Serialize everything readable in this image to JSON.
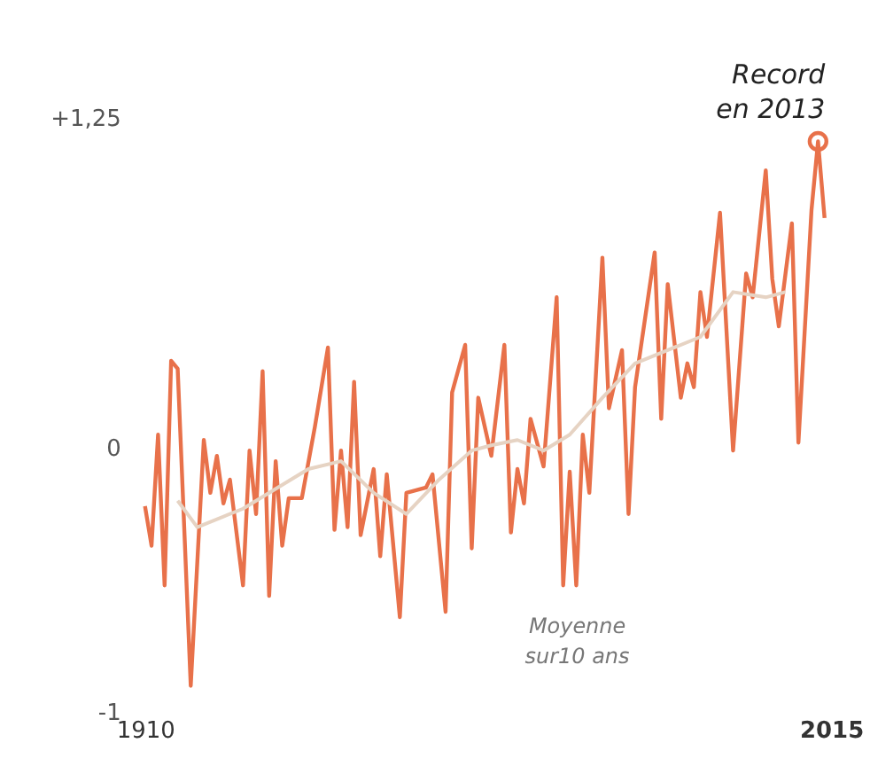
{
  "chart_data": {
    "type": "line",
    "xlim": [
      1910,
      2015
    ],
    "xticks": [
      1910,
      2015
    ],
    "ylim": [
      -1,
      1.25
    ],
    "yticks": [
      {
        "value": 1.25,
        "label": "+1,25"
      },
      0,
      -1
    ],
    "grid": false,
    "marker": "none",
    "line_style": "solid",
    "series": [
      {
        "color": "#e8714a",
        "x": [
          1910,
          1911,
          1912,
          1913,
          1914,
          1915,
          1917,
          1919,
          1920,
          1921,
          1922,
          1923,
          1925,
          1926,
          1927,
          1928,
          1929,
          1930,
          1931,
          1932,
          1934,
          1936,
          1938,
          1939,
          1940,
          1941,
          1942,
          1943,
          1945,
          1946,
          1947,
          1949,
          1950,
          1953,
          1954,
          1956,
          1957,
          1959,
          1960,
          1961,
          1963,
          1965,
          1966,
          1967,
          1968,
          1969,
          1971,
          1973,
          1974,
          1975,
          1976,
          1977,
          1978,
          1980,
          1981,
          1983,
          1984,
          1985,
          1988,
          1989,
          1990,
          1992,
          1993,
          1994,
          1995,
          1996,
          1998,
          2000,
          2002,
          2003,
          2005,
          2006,
          2007,
          2009,
          2010,
          2012,
          2013,
          2014
        ],
        "values": [
          -0.22,
          -0.37,
          0.05,
          -0.52,
          0.33,
          0.3,
          -0.9,
          0.03,
          -0.17,
          -0.03,
          -0.21,
          -0.12,
          -0.52,
          -0.01,
          -0.25,
          0.29,
          -0.56,
          -0.05,
          -0.37,
          -0.19,
          -0.19,
          0.08,
          0.38,
          -0.31,
          -0.01,
          -0.3,
          0.25,
          -0.33,
          -0.08,
          -0.41,
          -0.1,
          -0.64,
          -0.17,
          -0.15,
          -0.1,
          -0.62,
          0.21,
          0.39,
          -0.38,
          0.19,
          -0.03,
          0.39,
          -0.32,
          -0.08,
          -0.21,
          0.11,
          -0.07,
          0.57,
          -0.52,
          -0.09,
          -0.52,
          0.05,
          -0.17,
          0.72,
          0.15,
          0.37,
          -0.25,
          0.23,
          0.74,
          0.11,
          0.62,
          0.19,
          0.32,
          0.23,
          0.59,
          0.42,
          0.89,
          -0.01,
          0.66,
          0.57,
          1.05,
          0.64,
          0.46,
          0.85,
          0.02,
          0.9,
          1.16,
          0.87
        ]
      },
      {
        "color": "#e6d3c3",
        "x": [
          1915,
          1918,
          1925,
          1935,
          1940,
          1945,
          1950,
          1955,
          1960,
          1963,
          1967,
          1971,
          1975,
          1980,
          1985,
          1990,
          1995,
          2000,
          2005,
          2008
        ],
        "values": [
          -0.2,
          -0.3,
          -0.23,
          -0.08,
          -0.05,
          -0.17,
          -0.25,
          -0.12,
          -0.01,
          0.01,
          0.03,
          -0.01,
          0.05,
          0.19,
          0.32,
          0.37,
          0.42,
          0.59,
          0.57,
          0.59
        ]
      },
      {
        "type": "scatter",
        "marker": "circle",
        "color": "#e8714a",
        "x": [
          2013
        ],
        "values": [
          1.16
        ]
      }
    ],
    "annotations": [
      {
        "text": "Record\nen 2013",
        "x": 2013,
        "y": 1.16
      },
      "Moyenne\nsur10 ans"
    ]
  }
}
